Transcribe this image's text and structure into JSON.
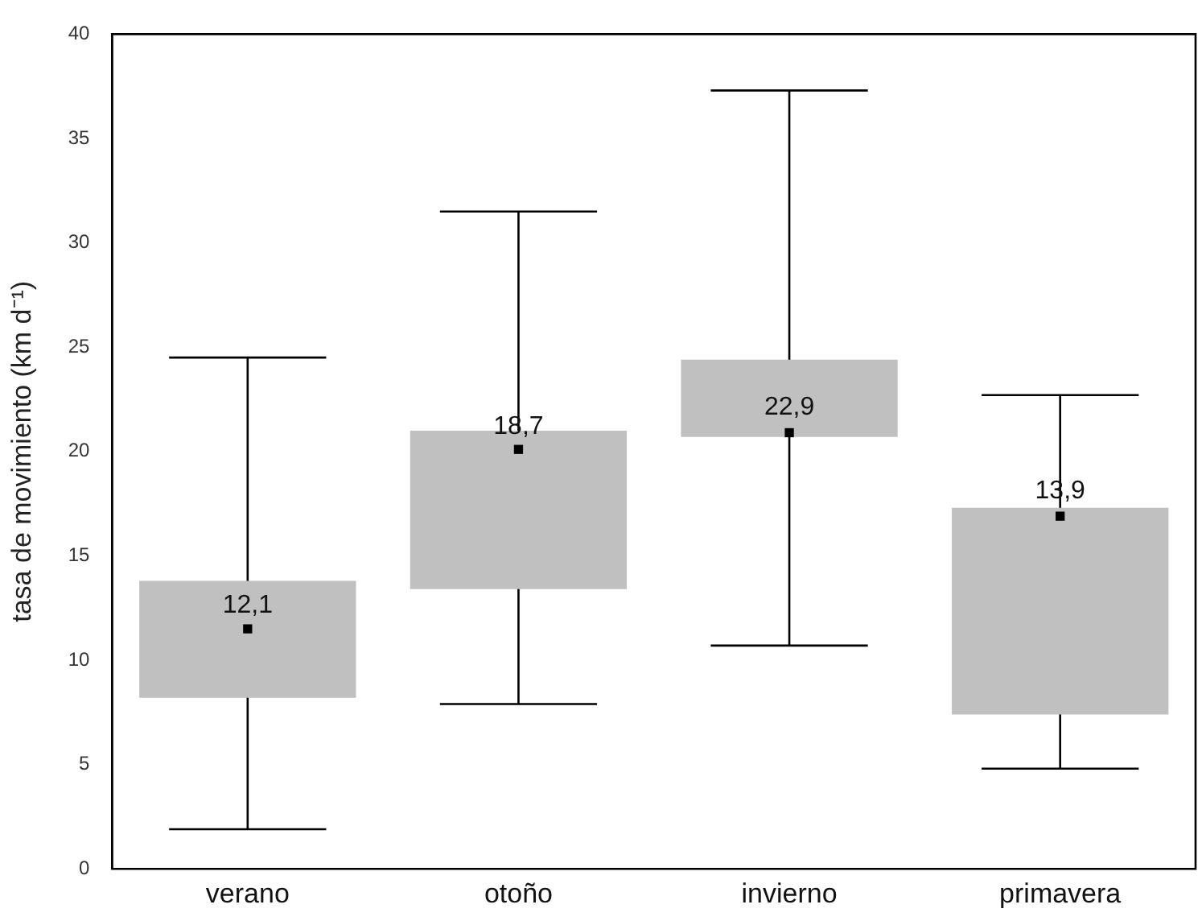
{
  "chart_data": {
    "type": "box",
    "ylabel": "tasa de movimiento (km d⁻¹)",
    "categories": [
      "verano",
      "otoño",
      "invierno",
      "primavera"
    ],
    "color": "#c0c0c0",
    "marker": "square",
    "grid": false,
    "ylim": [
      0,
      40
    ],
    "yticks": [
      0,
      5,
      10,
      15,
      20,
      25,
      30,
      35,
      40
    ],
    "boxes": [
      {
        "low": 1.9,
        "q1": 8.2,
        "median": 11.5,
        "q3": 13.8,
        "high": 24.5
      },
      {
        "low": 7.9,
        "q1": 13.4,
        "median": 20.1,
        "q3": 21.0,
        "high": 31.5
      },
      {
        "low": 10.7,
        "q1": 20.7,
        "median": 20.9,
        "q3": 24.4,
        "high": 37.3
      },
      {
        "low": 4.8,
        "q1": 7.4,
        "median": 16.9,
        "q3": 17.3,
        "high": 22.7
      }
    ],
    "annotations": [
      {
        "text": "12,1",
        "x": "verano",
        "y": 12.6
      },
      {
        "text": "18,7",
        "x": "otoño",
        "y": 21.2
      },
      {
        "text": "22,9",
        "x": "invierno",
        "y": 22.1
      },
      {
        "text": "13,9",
        "x": "primavera",
        "y": 18.1
      }
    ]
  }
}
